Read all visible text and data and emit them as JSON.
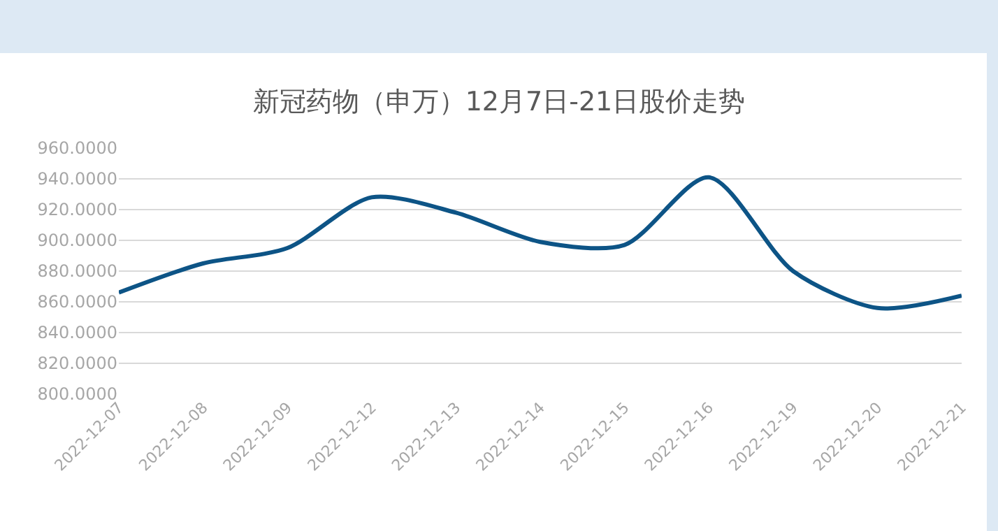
{
  "chart_data": {
    "type": "line",
    "title": "新冠药物（申万）12月7日-21日股价走势",
    "categories": [
      "2022-12-07",
      "2022-12-08",
      "2022-12-09",
      "2022-12-12",
      "2022-12-13",
      "2022-12-14",
      "2022-12-15",
      "2022-12-16",
      "2022-12-19",
      "2022-12-20",
      "2022-12-21"
    ],
    "series": [
      {
        "color": "#0d5486",
        "values": [
          866,
          885,
          895,
          928,
          918,
          899,
          897,
          941,
          880,
          856,
          864
        ]
      }
    ],
    "ylim": [
      800,
      960
    ],
    "yticks": [
      {
        "value": 800,
        "label": "800.0000"
      },
      {
        "value": 820,
        "label": "820.0000"
      },
      {
        "value": 840,
        "label": "840.0000"
      },
      {
        "value": 860,
        "label": "860.0000"
      },
      {
        "value": 880,
        "label": "880.0000"
      },
      {
        "value": 900,
        "label": "900.0000"
      },
      {
        "value": 920,
        "label": "920.0000"
      },
      {
        "value": 940,
        "label": "940.0000"
      },
      {
        "value": 960,
        "label": "960.0000"
      }
    ],
    "grid": "y",
    "marker": "none",
    "line_style": "solid"
  }
}
